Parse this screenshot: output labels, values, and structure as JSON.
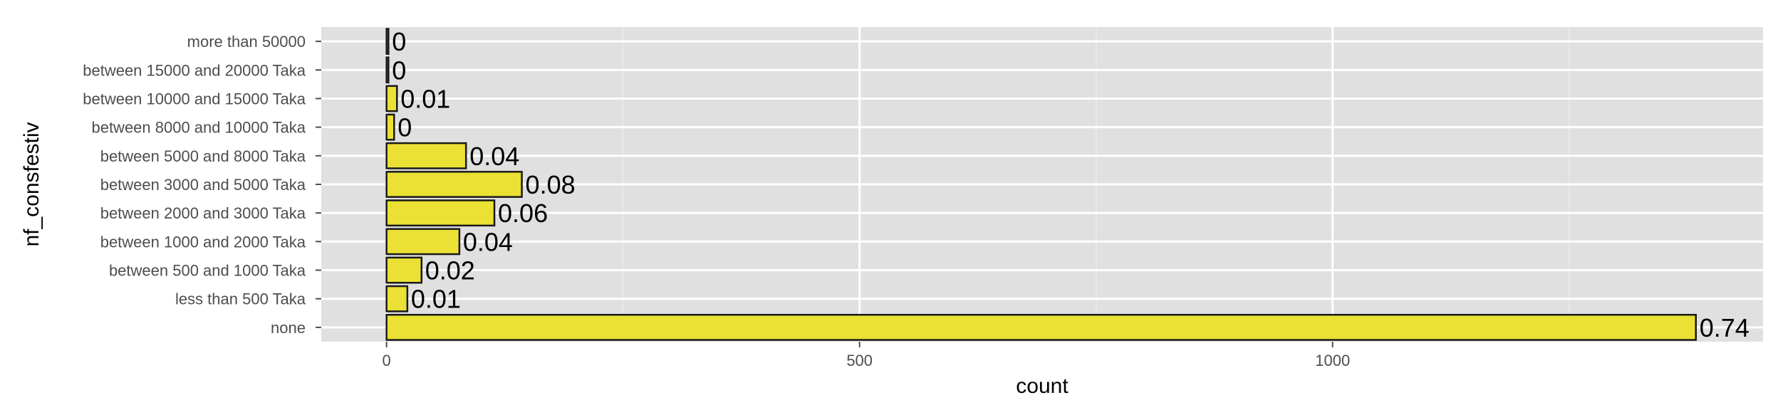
{
  "chart_data": {
    "type": "bar",
    "orientation": "horizontal",
    "categories": [
      "none",
      "less than 500 Taka",
      "between 500 and 1000 Taka",
      "between 1000 and 2000 Taka",
      "between 2000 and 3000 Taka",
      "between 3000 and 5000 Taka",
      "between 5000 and 8000 Taka",
      "between 8000 and 10000 Taka",
      "between 10000 and 15000 Taka",
      "between 15000 and 20000 Taka",
      "more than 50000"
    ],
    "values": [
      1384,
      22,
      37,
      77,
      114,
      143,
      84,
      8,
      11,
      2,
      2
    ],
    "data_labels": [
      "0.74",
      "0.01",
      "0.02",
      "0.04",
      "0.06",
      "0.08",
      "0.04",
      "0",
      "0.01",
      "0",
      "0"
    ],
    "xlabel": "count",
    "ylabel": "nf_consfestiv",
    "xlim": [
      -69,
      1455
    ],
    "x_ticks": [
      0,
      500,
      1000
    ],
    "x_minor_ticks": [
      250,
      750,
      1250
    ],
    "grid": true,
    "colors": {
      "bar_fill": "#ebe134",
      "bar_stroke": "#1a1a1a",
      "panel_background": "#e0e0e0",
      "grid_major": "#ffffff",
      "grid_minor": "#ececec"
    }
  }
}
